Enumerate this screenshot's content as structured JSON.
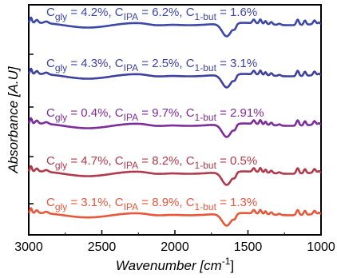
{
  "chart_data": {
    "type": "line",
    "xlabel": "Wavenumber [cm",
    "xlabel_sup": "-1",
    "xlabel_end": "]",
    "ylabel": "Absorbance [A.U]",
    "xlim": [
      3000,
      1000
    ],
    "x_ticks": [
      "3000",
      "2500",
      "2000",
      "1500",
      "1000"
    ],
    "grid": false,
    "series": [
      {
        "color": "#3c48a8",
        "label": [
          {
            "t": "C"
          },
          {
            "s": "gly"
          },
          {
            "t": " = 4.2%, C"
          },
          {
            "s": "IPA"
          },
          {
            "t": " = 6.2%, C"
          },
          {
            "s": "1-but"
          },
          {
            "t": " = 1.6%"
          }
        ]
      },
      {
        "color": "#3f41a0",
        "label": [
          {
            "t": "C"
          },
          {
            "s": "gly"
          },
          {
            "t": " = 4.3%, C"
          },
          {
            "s": "IPA"
          },
          {
            "t": " = 2.5%, C"
          },
          {
            "s": "1-but"
          },
          {
            "t": " = 3.1%"
          }
        ]
      },
      {
        "color": "#7d2d9a",
        "label": [
          {
            "t": "C"
          },
          {
            "s": "gly"
          },
          {
            "t": " = 0.4%, C"
          },
          {
            "s": "IPA"
          },
          {
            "t": " = 9.7%, C"
          },
          {
            "s": "1-but"
          },
          {
            "t": " = 2.91%"
          }
        ]
      },
      {
        "color": "#b03a4c",
        "label": [
          {
            "t": "C"
          },
          {
            "s": "gly"
          },
          {
            "t": " = 4.7%, C"
          },
          {
            "s": "IPA"
          },
          {
            "t": " = 8.2%, C"
          },
          {
            "s": "1-but"
          },
          {
            "t": " = 0.5%"
          }
        ]
      },
      {
        "color": "#e8573a",
        "label": [
          {
            "t": "C"
          },
          {
            "s": "gly"
          },
          {
            "t": " = 3.1%, C"
          },
          {
            "s": "IPA"
          },
          {
            "t": " = 8.9%, C"
          },
          {
            "s": "1-but"
          },
          {
            "t": " = 1.3%"
          }
        ]
      }
    ]
  }
}
